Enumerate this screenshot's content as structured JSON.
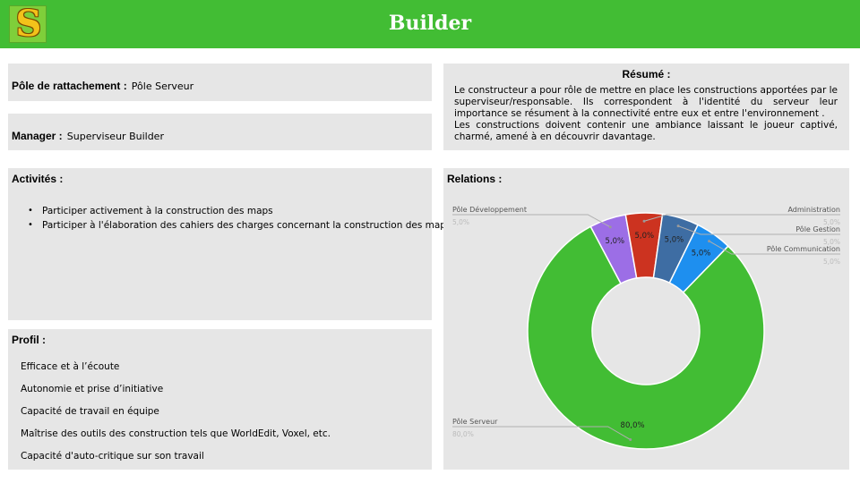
{
  "header": {
    "title": "Builder",
    "logo_letter": "S"
  },
  "pole": {
    "label": "Pôle de rattachement :",
    "value": "Pôle Serveur"
  },
  "manager": {
    "label": "Manager :",
    "value": "Superviseur Builder"
  },
  "resume": {
    "title": "Résumé :",
    "paragraphs": [
      "Le constructeur a pour rôle de mettre en place les constructions apportées par le superviseur/responsable. Ils correspondent à l'identité du serveur leur importance se résument à la connectivité entre eux et entre l'environnement .",
      "Les constructions doivent contenir une ambiance laissant le joueur captivé, charmé, amené à en découvrir davantage."
    ]
  },
  "activites": {
    "title": "Activités :",
    "items": [
      "Participer activement à la construction des maps",
      "Participer à l'élaboration des cahiers des charges concernant la construction des maps"
    ]
  },
  "profil": {
    "title": "Profil :",
    "items": [
      "Efficace et à l’écoute",
      "Autonomie et prise d’initiative",
      "Capacité de travail en équipe",
      "Maîtrise des outils des construction tels que WorldEdit, Voxel, etc.",
      "Capacité d'auto-critique sur son travail"
    ]
  },
  "relations": {
    "title": "Relations :"
  },
  "chart_data": {
    "type": "pie",
    "donut": true,
    "title": "Relations :",
    "categories": [
      "Administration",
      "Pôle Gestion",
      "Pôle Communication",
      "Pôle Serveur",
      "Pôle Développement"
    ],
    "values": [
      5.0,
      5.0,
      5.0,
      80.0,
      5.0
    ],
    "value_labels": [
      "5,0%",
      "5,0%",
      "5,0%",
      "80,0%",
      "5,0%"
    ],
    "colors": [
      "#cc3320",
      "#3e6da3",
      "#1e8fef",
      "#42bd34",
      "#9c6ee6"
    ],
    "legend": "callout labels around the chart"
  }
}
